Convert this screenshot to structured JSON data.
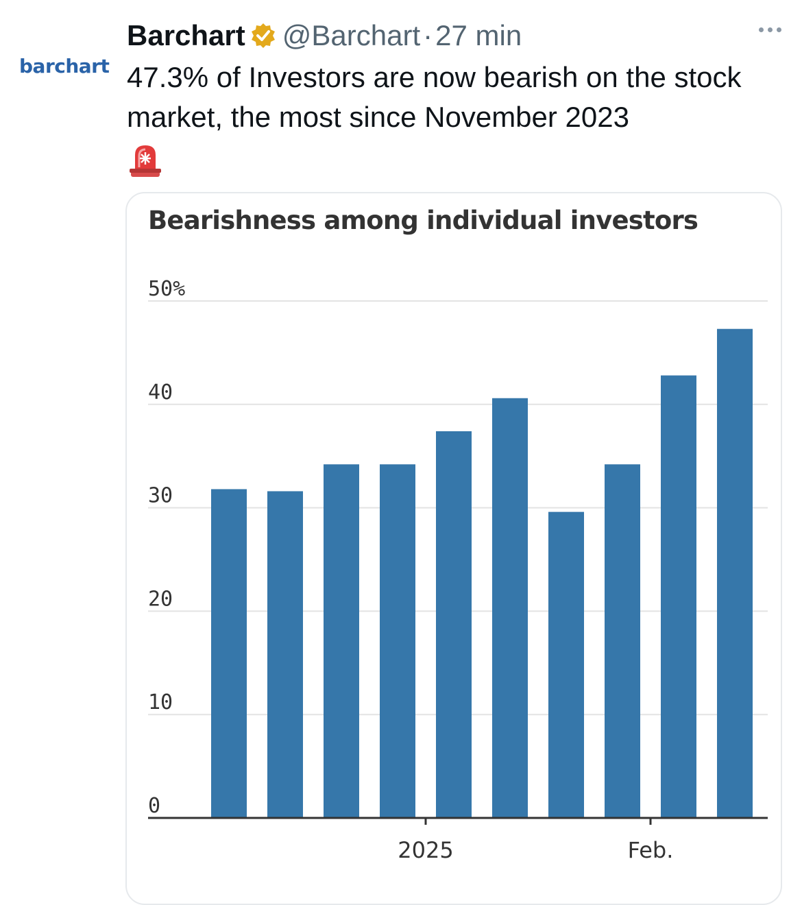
{
  "logo": {
    "text": "barchart"
  },
  "tweet": {
    "author_name": "Barchart",
    "verified_icon": "verified-badge-icon",
    "handle": "@Barchart",
    "separator": "·",
    "time": "27 min",
    "more_icon": "more-options-icon",
    "text": "47.3% of Investors are now bearish on the stock market, the most since November 2023",
    "emoji_icon": "police-siren-icon"
  },
  "colors": {
    "bar": "#3677aa",
    "grid": "#e3e3e3",
    "axis": "#333333",
    "badge": "#e3a91c"
  },
  "chart_data": {
    "type": "bar",
    "title": "Bearishness among individual investors",
    "ylim": [
      0,
      50
    ],
    "yticks": [
      0,
      10,
      20,
      30,
      40,
      50
    ],
    "ytick_labels": [
      "0",
      "10",
      "20",
      "30",
      "40",
      "50%"
    ],
    "values": [
      31.8,
      31.6,
      34.2,
      34.2,
      37.4,
      40.6,
      29.6,
      34.2,
      42.8,
      47.3
    ],
    "x_tick_labels": [
      {
        "after_bar": 3,
        "label": "2025"
      },
      {
        "after_bar": 7,
        "label": "Feb."
      }
    ],
    "grid": true,
    "legend": "none"
  }
}
